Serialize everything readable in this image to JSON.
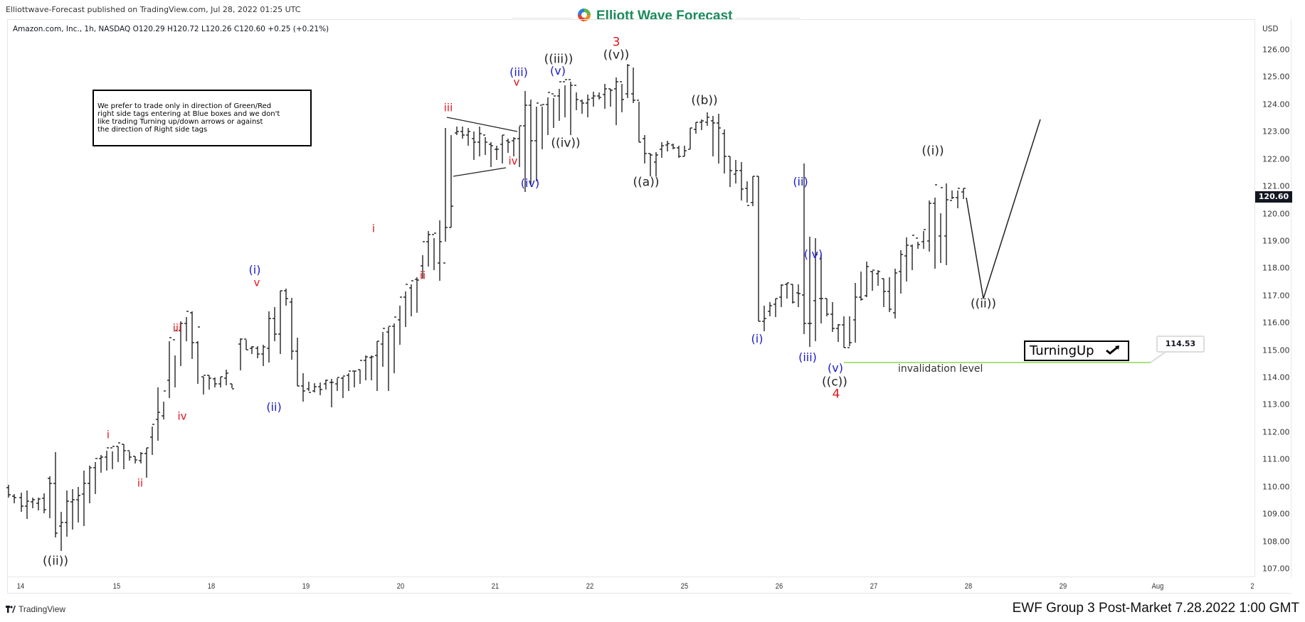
{
  "header": {
    "publish_line": "Elliottwave-Forecast published on TradingView.com, Jul 28, 2022 01:25 UTC",
    "brand_name": "Elliott Wave Forecast",
    "brand_icon": "ewf-swirl-logo-icon"
  },
  "symbol_info": {
    "text": "Amazon.com, Inc., 1h, NASDAQ  O120.29  H120.72  L120.26  C120.60  +0.25 (+0.21%)",
    "name": "Amazon.com, Inc.",
    "interval": "1h",
    "exchange": "NASDAQ",
    "open": "120.29",
    "high": "120.72",
    "low": "120.26",
    "close": "120.60",
    "change": "+0.25",
    "change_pct": "+0.21%"
  },
  "note_box": {
    "lines": [
      "We prefer to trade only in direction of Green/Red",
      "right side tags entering at Blue boxes and we don't",
      "like trading Turning up/down arrows or against",
      "the direction of Right side tags"
    ]
  },
  "price_axis": {
    "currency": "USD",
    "ticks": [
      "126.00",
      "125.00",
      "124.00",
      "123.00",
      "122.00",
      "121.00",
      "120.00",
      "119.00",
      "118.00",
      "117.00",
      "116.00",
      "115.00",
      "114.00",
      "113.00",
      "112.00",
      "111.00",
      "110.00",
      "109.00",
      "108.00",
      "107.00"
    ],
    "last_price": "120.60"
  },
  "time_axis": {
    "ticks": [
      "14",
      "15",
      "18",
      "19",
      "20",
      "21",
      "22",
      "25",
      "26",
      "27",
      "28",
      "29",
      "Aug",
      "2"
    ]
  },
  "annotations": {
    "turning_label": "TurningUp",
    "turning_icon": "check-arrow-up-icon",
    "invalidation_label": "invalidation level",
    "invalidation_price": "114.53"
  },
  "footer": {
    "tv_brand": "TradingView",
    "caption": "EWF Group 3 Post-Market 7.28.2022 1:00 GMT"
  },
  "colors": {
    "red_wave": "#e0141e",
    "blue_wave": "#1a1acc",
    "black_wave": "#222222",
    "invalidation_line": "#a8e07a",
    "brand_green": "#1a8a5a"
  },
  "chart_data": {
    "type": "ohlc",
    "title": "Amazon.com, Inc., 1h, NASDAQ",
    "xlabel": "",
    "ylabel": "USD",
    "ylim": [
      106.6,
      126.5
    ],
    "grid": false,
    "x_ticks": [
      "14",
      "15",
      "18",
      "19",
      "20",
      "21",
      "22",
      "25",
      "26",
      "27",
      "28",
      "29",
      "Aug",
      "2"
    ],
    "approx_swing_points": [
      {
        "label": "((ii))",
        "date": "Jul 14",
        "price": 107.9
      },
      {
        "label": "i",
        "date": "Jul 15",
        "price": 111.6
      },
      {
        "label": "ii",
        "date": "Jul 15",
        "price": 110.5
      },
      {
        "label": "iii",
        "date": "Jul 15",
        "price": 115.5
      },
      {
        "label": "iv",
        "date": "Jul 15",
        "price": 112.9
      },
      {
        "label": "v / (i)",
        "date": "Jul 18",
        "price": 117.2
      },
      {
        "label": "(ii)",
        "date": "Jul 19",
        "price": 113.2
      },
      {
        "label": "i",
        "date": "Jul 20",
        "price": 119.2
      },
      {
        "label": "ii",
        "date": "Jul 20",
        "price": 118.0
      },
      {
        "label": "iii",
        "date": "Jul 20",
        "price": 123.5
      },
      {
        "label": "iv",
        "date": "Jul 21",
        "price": 121.8
      },
      {
        "label": "v / (iii)",
        "date": "Jul 21",
        "price": 124.5
      },
      {
        "label": "(iv)",
        "date": "Jul 21",
        "price": 121.3
      },
      {
        "label": "(v) / ((iii))",
        "date": "Jul 21",
        "price": 124.8
      },
      {
        "label": "((iv))",
        "date": "Jul 22",
        "price": 122.7
      },
      {
        "label": "((v)) / 3",
        "date": "Jul 22",
        "price": 125.5
      },
      {
        "label": "((a))",
        "date": "Jul 22",
        "price": 121.4
      },
      {
        "label": "((b))",
        "date": "Jul 25",
        "price": 123.7
      },
      {
        "label": "(i)",
        "date": "Jul 25",
        "price": 115.6
      },
      {
        "label": "(ii)",
        "date": "Jul 26",
        "price": 120.8
      },
      {
        "label": "(iii)",
        "date": "Jul 26",
        "price": 114.9
      },
      {
        "label": "(iv)",
        "date": "Jul 26",
        "price": 118.1
      },
      {
        "label": "(v) / ((c)) / 4",
        "date": "Jul 26",
        "price": 114.53
      },
      {
        "label": "((i))",
        "date": "Jul 27",
        "price": 121.9
      },
      {
        "label": "last",
        "date": "Jul 28",
        "price": 120.6
      },
      {
        "label": "((ii)) projected",
        "date": "Jul 28",
        "price": 117.0
      },
      {
        "label": "projected high",
        "date": "Jul 28",
        "price": 123.4
      }
    ],
    "horizontal_levels": [
      {
        "name": "invalidation level",
        "price": 114.53
      }
    ],
    "legend": []
  }
}
